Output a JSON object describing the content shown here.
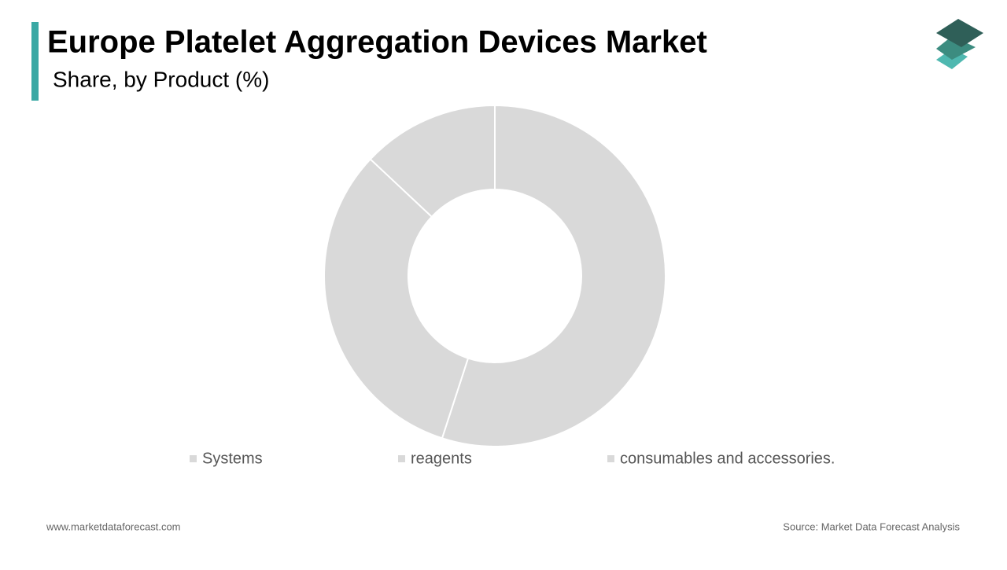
{
  "chart_data": {
    "type": "donut",
    "title": "Europe Platelet Aggregation Devices Market",
    "subtitle": "Share, by Product  (%)",
    "categories": [
      "Systems",
      "reagents",
      "consumables and accessories."
    ],
    "values": [
      55,
      32,
      13
    ],
    "colors": [
      "#d9d9d9",
      "#d9d9d9",
      "#d9d9d9"
    ],
    "legend": "bottom"
  },
  "footer": {
    "website": "www.marketdataforecast.com",
    "source": "Source: Market Data Forecast Analysis"
  }
}
